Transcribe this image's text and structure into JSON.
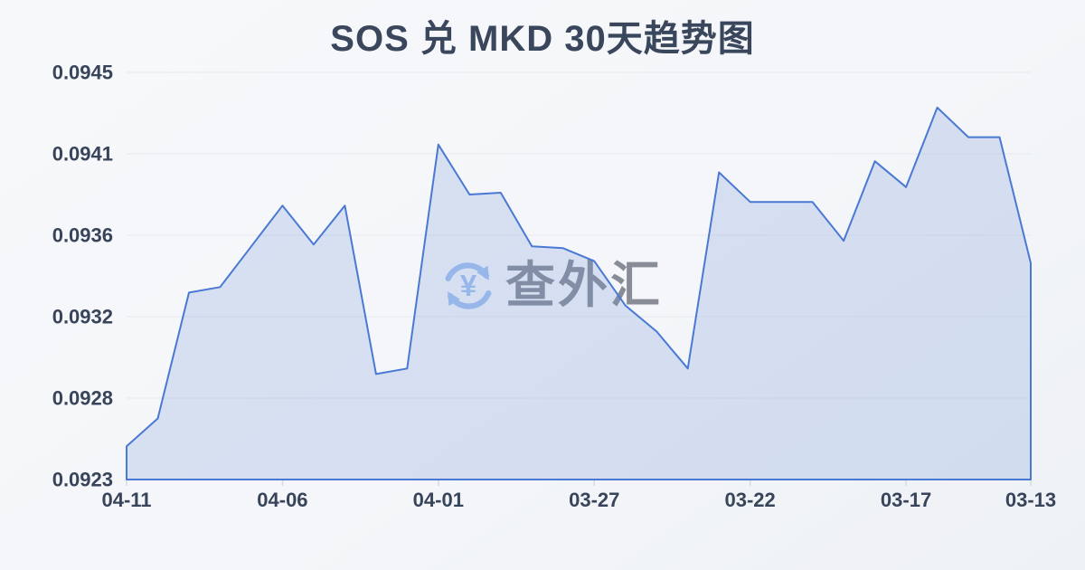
{
  "title": "SOS 兑 MKD 30天趋势图",
  "watermark": {
    "text": "查外汇",
    "icon": "currency-exchange-yen-icon",
    "icon_symbol": "¥",
    "icon_color": "#a2c0ef",
    "text_color": "#6c727d"
  },
  "colors": {
    "background": "#f4f6f9",
    "title_text": "#39465c",
    "axis_text": "#38445a",
    "grid": "#e6e9ee",
    "tick": "#d7dade",
    "line": "#4a79d4",
    "fill": "rgba(116,150,216,0.24)"
  },
  "chart_data": {
    "type": "area",
    "title": "SOS 兑 MKD 30天趋势图",
    "xlabel": "",
    "ylabel": "",
    "x_axis_note": "dates run newest (04-11) on the left to oldest (03-13) on the right",
    "x": [
      "04-11",
      "04-10",
      "04-09",
      "04-08",
      "04-07",
      "04-06",
      "04-05",
      "04-04",
      "04-03",
      "04-02",
      "04-01",
      "03-31",
      "03-30",
      "03-29",
      "03-28",
      "03-27",
      "03-26",
      "03-25",
      "03-24",
      "03-23",
      "03-22",
      "03-21",
      "03-20",
      "03-19",
      "03-18",
      "03-17",
      "03-16",
      "03-15",
      "03-14",
      "03-13"
    ],
    "values": [
      0.09248,
      0.09263,
      0.09331,
      0.09334,
      0.09356,
      0.09378,
      0.09357,
      0.09378,
      0.09287,
      0.0929,
      0.09411,
      0.09384,
      0.09385,
      0.09356,
      0.09355,
      0.09348,
      0.09324,
      0.0931,
      0.0929,
      0.09396,
      0.0938,
      0.0938,
      0.0938,
      0.09359,
      0.09402,
      0.09388,
      0.09431,
      0.09415,
      0.09415,
      0.09347
    ],
    "x_tick_labels": [
      "04-11",
      "04-06",
      "04-01",
      "03-27",
      "03-22",
      "03-17",
      "03-13"
    ],
    "x_tick_indices": [
      0,
      5,
      10,
      15,
      20,
      25,
      29
    ],
    "y_tick_labels": [
      "0.0945",
      "0.0941",
      "0.0936",
      "0.0932",
      "0.0928",
      "0.0923"
    ],
    "ylim": [
      0.0923,
      0.0945
    ],
    "grid": "horizontal",
    "legend": "none"
  }
}
